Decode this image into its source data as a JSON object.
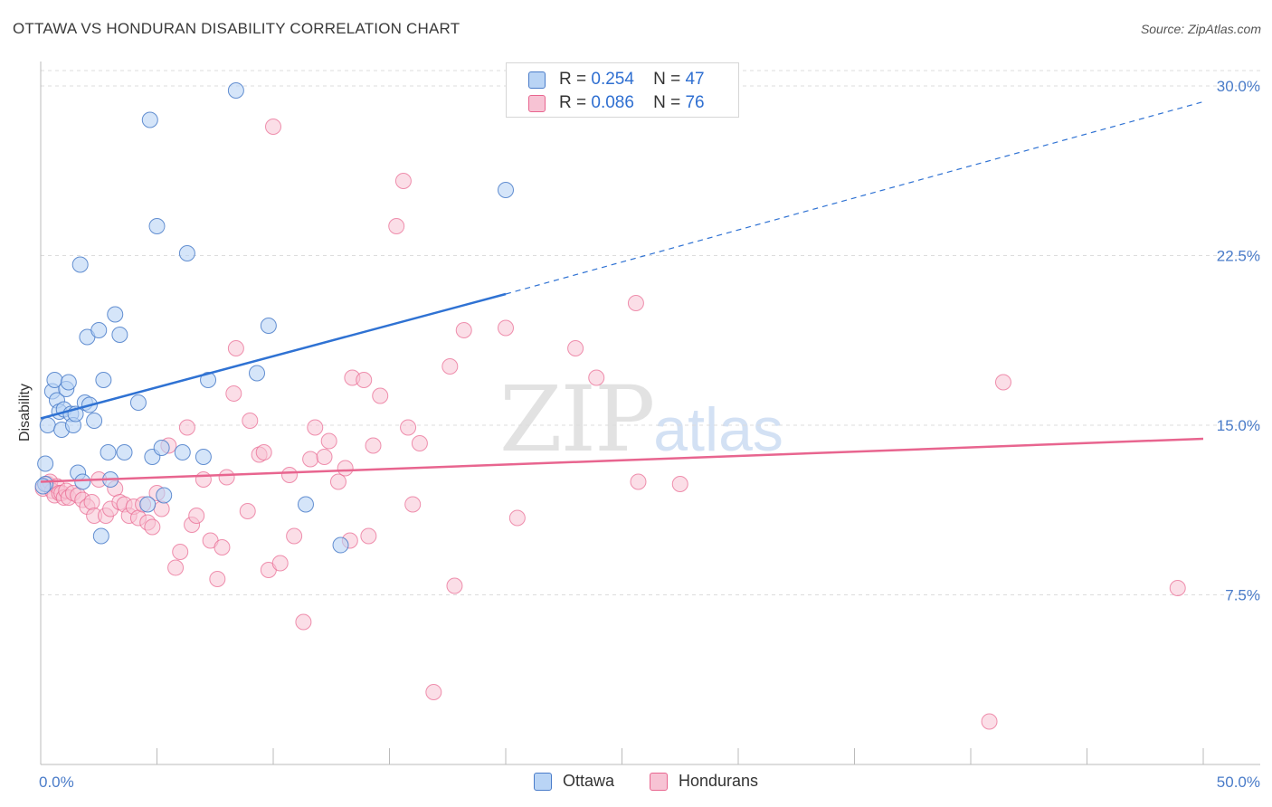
{
  "title": "OTTAWA VS HONDURAN DISABILITY CORRELATION CHART",
  "source": "Source: ZipAtlas.com",
  "watermark": {
    "zip": "ZIP",
    "atlas": "atlas"
  },
  "colors": {
    "blue": "#4a7cc9",
    "blue_fill": "#b9d4f5",
    "blue_line": "#2f72d3",
    "pink": "#e8658f",
    "pink_fill": "#f7c3d4",
    "grid": "#dcdcdc"
  },
  "legend": {
    "rows": [
      {
        "r_label": "R =",
        "r_value": "0.254",
        "n_label": "N =",
        "n_value": "47"
      },
      {
        "r_label": "R =",
        "r_value": "0.086",
        "n_label": "N =",
        "n_value": "76"
      }
    ]
  },
  "chart_data": {
    "type": "scatter",
    "ylabel": "Disability",
    "xlim": [
      0,
      50
    ],
    "ylim": [
      0,
      31
    ],
    "x_ticks": [
      "0.0%",
      "50.0%"
    ],
    "y_ticks": [
      {
        "value": 7.5,
        "label": "7.5%"
      },
      {
        "value": 15.0,
        "label": "15.0%"
      },
      {
        "value": 22.5,
        "label": "22.5%"
      },
      {
        "value": 30.0,
        "label": "30.0%"
      }
    ],
    "series": [
      {
        "name": "Ottawa",
        "color": "#4a7cc9",
        "fill": "#b9d4f5",
        "trend": {
          "x1": 0,
          "y1": 15.3,
          "x2": 20,
          "y2": 20.8,
          "dash_to_x": 50,
          "dash_to_y": 29.3
        },
        "points": [
          [
            0.2,
            12.4
          ],
          [
            0.2,
            13.3
          ],
          [
            0.3,
            15.0
          ],
          [
            0.5,
            16.5
          ],
          [
            0.6,
            17.0
          ],
          [
            0.7,
            16.1
          ],
          [
            0.8,
            15.6
          ],
          [
            0.9,
            14.8
          ],
          [
            1.0,
            15.7
          ],
          [
            1.1,
            16.6
          ],
          [
            1.2,
            16.9
          ],
          [
            1.3,
            15.5
          ],
          [
            1.4,
            15.0
          ],
          [
            1.5,
            15.5
          ],
          [
            1.6,
            12.9
          ],
          [
            1.7,
            22.1
          ],
          [
            1.8,
            12.5
          ],
          [
            1.9,
            16.0
          ],
          [
            2.0,
            18.9
          ],
          [
            2.1,
            15.9
          ],
          [
            2.3,
            15.2
          ],
          [
            2.5,
            19.2
          ],
          [
            2.6,
            10.1
          ],
          [
            2.7,
            17.0
          ],
          [
            2.9,
            13.8
          ],
          [
            3.0,
            12.6
          ],
          [
            3.2,
            19.9
          ],
          [
            3.4,
            19.0
          ],
          [
            3.6,
            13.8
          ],
          [
            4.2,
            16.0
          ],
          [
            4.7,
            28.5
          ],
          [
            4.8,
            13.6
          ],
          [
            5.0,
            23.8
          ],
          [
            5.2,
            14.0
          ],
          [
            4.6,
            11.5
          ],
          [
            5.3,
            11.9
          ],
          [
            6.1,
            13.8
          ],
          [
            6.3,
            22.6
          ],
          [
            7.0,
            13.6
          ],
          [
            7.2,
            17.0
          ],
          [
            8.4,
            29.8
          ],
          [
            9.3,
            17.3
          ],
          [
            9.8,
            19.4
          ],
          [
            11.4,
            11.5
          ],
          [
            12.9,
            9.7
          ],
          [
            20.0,
            25.4
          ],
          [
            0.1,
            12.3
          ]
        ]
      },
      {
        "name": "Hondurans",
        "color": "#e8658f",
        "fill": "#f7c3d4",
        "trend": {
          "x1": 0,
          "y1": 12.5,
          "x2": 50,
          "y2": 14.4
        },
        "points": [
          [
            0.1,
            12.2
          ],
          [
            0.3,
            12.4
          ],
          [
            0.4,
            12.5
          ],
          [
            0.5,
            12.1
          ],
          [
            0.6,
            11.9
          ],
          [
            0.7,
            12.3
          ],
          [
            0.8,
            12.0
          ],
          [
            0.9,
            12.0
          ],
          [
            1.0,
            11.8
          ],
          [
            1.1,
            12.1
          ],
          [
            1.2,
            11.8
          ],
          [
            1.4,
            12.0
          ],
          [
            1.6,
            11.9
          ],
          [
            1.8,
            11.7
          ],
          [
            2.0,
            11.4
          ],
          [
            2.2,
            11.6
          ],
          [
            2.3,
            11.0
          ],
          [
            2.5,
            12.6
          ],
          [
            2.8,
            11.0
          ],
          [
            3.0,
            11.3
          ],
          [
            3.2,
            12.2
          ],
          [
            3.4,
            11.6
          ],
          [
            3.6,
            11.5
          ],
          [
            3.8,
            11.0
          ],
          [
            4.0,
            11.4
          ],
          [
            4.2,
            10.9
          ],
          [
            4.4,
            11.5
          ],
          [
            4.6,
            10.7
          ],
          [
            4.8,
            10.5
          ],
          [
            5.0,
            12.0
          ],
          [
            5.2,
            11.3
          ],
          [
            5.5,
            14.1
          ],
          [
            5.8,
            8.7
          ],
          [
            6.0,
            9.4
          ],
          [
            6.3,
            14.9
          ],
          [
            6.5,
            10.6
          ],
          [
            6.7,
            11.0
          ],
          [
            7.0,
            12.6
          ],
          [
            7.3,
            9.9
          ],
          [
            7.6,
            8.2
          ],
          [
            7.8,
            9.6
          ],
          [
            8.0,
            12.7
          ],
          [
            8.3,
            16.4
          ],
          [
            8.4,
            18.4
          ],
          [
            8.9,
            11.2
          ],
          [
            9.0,
            15.2
          ],
          [
            9.4,
            13.7
          ],
          [
            9.6,
            13.8
          ],
          [
            9.8,
            8.6
          ],
          [
            10.0,
            28.2
          ],
          [
            10.3,
            8.9
          ],
          [
            10.7,
            12.8
          ],
          [
            10.9,
            10.1
          ],
          [
            11.3,
            6.3
          ],
          [
            11.6,
            13.5
          ],
          [
            11.8,
            14.9
          ],
          [
            12.2,
            13.6
          ],
          [
            12.4,
            14.3
          ],
          [
            12.8,
            12.5
          ],
          [
            13.1,
            13.1
          ],
          [
            13.3,
            9.9
          ],
          [
            13.4,
            17.1
          ],
          [
            13.9,
            17.0
          ],
          [
            14.1,
            10.1
          ],
          [
            14.3,
            14.1
          ],
          [
            14.6,
            16.3
          ],
          [
            15.3,
            23.8
          ],
          [
            15.6,
            25.8
          ],
          [
            15.8,
            14.9
          ],
          [
            16.0,
            11.5
          ],
          [
            16.3,
            14.2
          ],
          [
            16.9,
            3.2
          ],
          [
            17.6,
            17.6
          ],
          [
            17.8,
            7.9
          ],
          [
            18.2,
            19.2
          ],
          [
            20.5,
            10.9
          ]
        ],
        "points_extra": [
          [
            20.0,
            19.3
          ],
          [
            23.0,
            18.4
          ],
          [
            23.9,
            17.1
          ],
          [
            25.6,
            20.4
          ],
          [
            25.7,
            12.5
          ],
          [
            27.5,
            12.4
          ],
          [
            41.4,
            16.9
          ],
          [
            40.8,
            1.9
          ],
          [
            48.9,
            7.8
          ]
        ]
      }
    ],
    "legend": [
      "Ottawa",
      "Hondurans"
    ]
  }
}
